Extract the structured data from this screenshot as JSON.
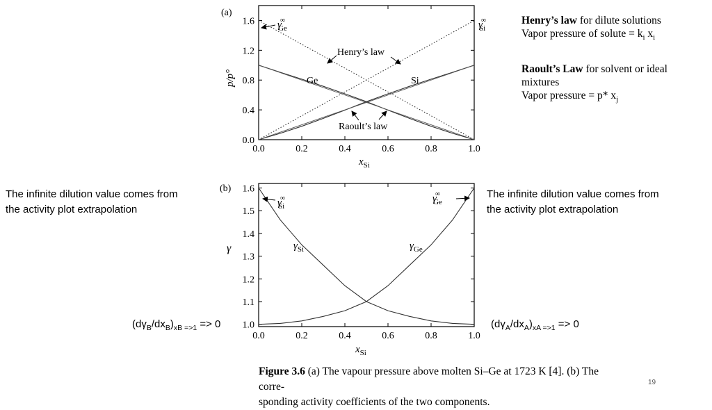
{
  "right_notes": {
    "henry": {
      "heading": "Henry’s law",
      "rest": "for dilute solutions",
      "line2_pre": "Vapor pressure of solute = k",
      "sub_i": "i",
      "space": " x",
      "sub_i2": "i"
    },
    "raoult": {
      "heading": "Raoult’s Law",
      "rest": "for solvent or ideal",
      "line2": "mixtures",
      "line3_pre": "Vapor pressure = p* x",
      "sub_j": "j"
    }
  },
  "left_note": {
    "line1": "The infinite dilution value comes from",
    "line2": "the activity plot extrapolation"
  },
  "right_note": {
    "line1": "The infinite dilution value comes from",
    "line2": "the activity plot extrapolation"
  },
  "deriv_left": {
    "pre": "(dγ",
    "s1": "B",
    "mid": "/dx",
    "s2": "B",
    "close": ")",
    "s3": "xB =>1",
    "post": " => 0"
  },
  "deriv_right": {
    "pre": "(dγ",
    "s1": "A",
    "mid": "/dx",
    "s2": "A",
    "close": ")",
    "s3": "xA =>1",
    "post": " => 0"
  },
  "caption": {
    "bold": "Figure 3.6",
    "text": " (a) The vapour pressure above molten Si–Ge at 1723 K [4]. (b) The corre-",
    "line2": "sponding activity coefficients of the two components."
  },
  "page_number": "19",
  "chart_data": [
    {
      "type": "line",
      "panel_label": "(a)",
      "xlabel_main": "x",
      "xlabel_sub": "Si",
      "ylabel": "p/p°",
      "xlim": [
        0,
        1
      ],
      "ylim": [
        0,
        1.8
      ],
      "xticks": [
        "0.0",
        "0.2",
        "0.4",
        "0.6",
        "0.8",
        "1.0"
      ],
      "yticks": [
        "0.0",
        "0.4",
        "0.8",
        "1.2",
        "1.6"
      ],
      "ytick_values": [
        0,
        0.4,
        0.8,
        1.2,
        1.6
      ],
      "series": [
        {
          "name": "Ge",
          "style": "solid",
          "x": [
            0,
            0.1,
            0.2,
            0.3,
            0.4,
            0.5,
            0.6,
            0.7,
            0.8,
            0.9,
            1.0
          ],
          "y": [
            1.0,
            0.905,
            0.812,
            0.716,
            0.616,
            0.51,
            0.396,
            0.285,
            0.18,
            0.085,
            0
          ]
        },
        {
          "name": "Si",
          "style": "solid",
          "x": [
            0,
            0.1,
            0.2,
            0.3,
            0.4,
            0.5,
            0.6,
            0.7,
            0.8,
            0.9,
            1.0
          ],
          "y": [
            0,
            0.085,
            0.18,
            0.285,
            0.396,
            0.51,
            0.616,
            0.716,
            0.812,
            0.905,
            1.0
          ]
        },
        {
          "style": "dotted",
          "x": [
            0,
            1
          ],
          "y": [
            1.6,
            0
          ]
        },
        {
          "style": "dotted",
          "x": [
            0,
            1
          ],
          "y": [
            0,
            1.6
          ]
        },
        {
          "style": "solid-thin",
          "x": [
            0,
            1
          ],
          "y": [
            1.0,
            0
          ]
        },
        {
          "style": "solid-thin",
          "x": [
            0,
            1
          ],
          "y": [
            0,
            1.0
          ]
        }
      ],
      "annotations": {
        "gamma_ge_inf": {
          "sym": "γ",
          "sub": "Ge",
          "sup": "∞"
        },
        "gamma_si_inf": {
          "sym": "γ",
          "sub": "Si",
          "sup": "∞"
        },
        "henrys_law": "Henry’s law",
        "raoults_law": "Raoult’s law",
        "ge": "Ge",
        "si": "Si"
      }
    },
    {
      "type": "line",
      "panel_label": "(b)",
      "xlabel_main": "x",
      "xlabel_sub": "Si",
      "ylabel": "γ",
      "xlim": [
        0,
        1
      ],
      "ylim": [
        0.99,
        1.62
      ],
      "xticks": [
        "0.0",
        "0.2",
        "0.4",
        "0.6",
        "0.8",
        "1.0"
      ],
      "yticks": [
        "1.0",
        "1.1",
        "1.2",
        "1.3",
        "1.4",
        "1.5",
        "1.6"
      ],
      "ytick_values": [
        1.0,
        1.1,
        1.2,
        1.3,
        1.4,
        1.5,
        1.6
      ],
      "series": [
        {
          "name": "γSi",
          "x": [
            0,
            0.1,
            0.2,
            0.3,
            0.4,
            0.5,
            0.6,
            0.7,
            0.8,
            0.9,
            1.0
          ],
          "y": [
            1.6,
            1.46,
            1.35,
            1.26,
            1.17,
            1.1,
            1.06,
            1.035,
            1.015,
            1.004,
            1.0
          ]
        },
        {
          "name": "γGe",
          "x": [
            0,
            0.1,
            0.2,
            0.3,
            0.4,
            0.5,
            0.6,
            0.7,
            0.8,
            0.9,
            1.0
          ],
          "y": [
            1.0,
            1.004,
            1.015,
            1.035,
            1.06,
            1.1,
            1.17,
            1.26,
            1.35,
            1.46,
            1.6
          ]
        }
      ],
      "annotations": {
        "gamma_si_inf": {
          "sym": "γ",
          "sub": "Si",
          "sup": "∞"
        },
        "gamma_ge_inf": {
          "sym": "γ",
          "sub": "Ge",
          "sup": "∞"
        },
        "gamma_si": {
          "sym": "γ",
          "sub": "Si"
        },
        "gamma_ge": {
          "sym": "γ",
          "sub": "Ge"
        }
      }
    }
  ]
}
